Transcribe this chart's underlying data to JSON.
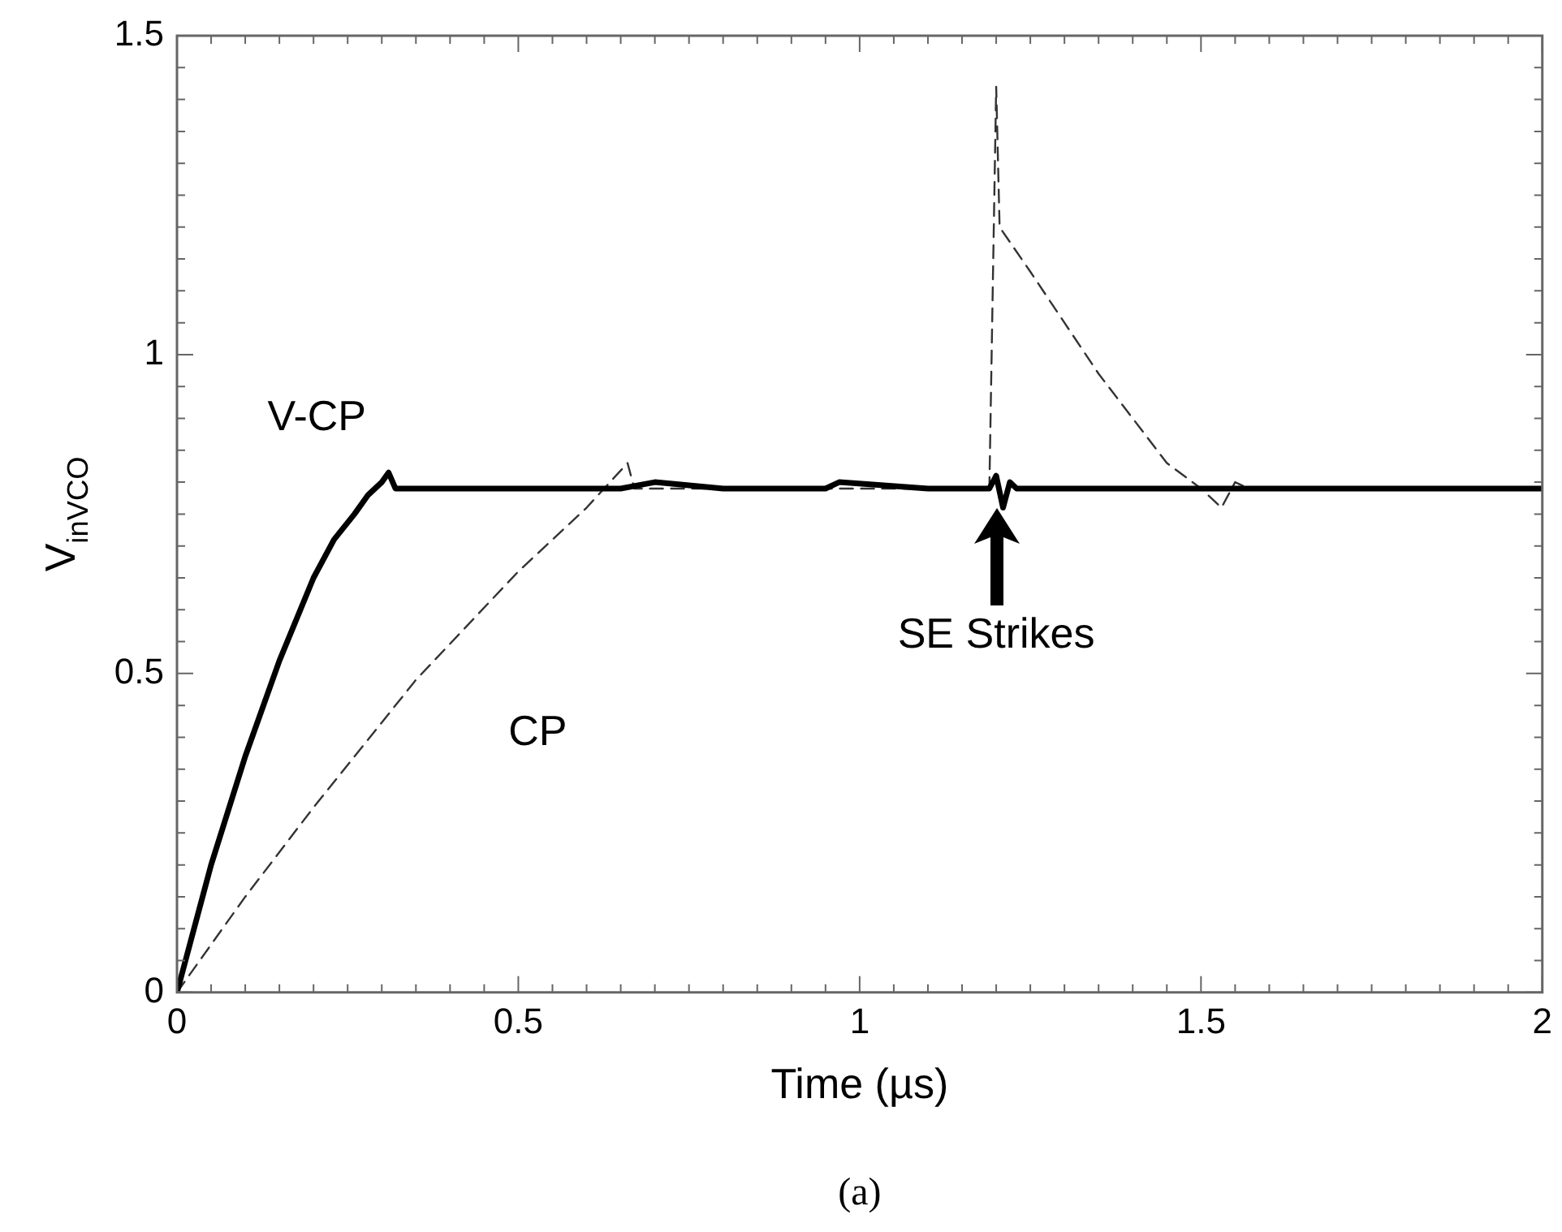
{
  "chart_data": {
    "type": "line",
    "xlabel": "Time (µs)",
    "ylabel": "V$_{inVCO}$",
    "xlim": [
      0,
      2
    ],
    "ylim": [
      0,
      1.5
    ],
    "xticks": [
      0,
      0.5,
      1,
      1.5,
      2
    ],
    "yticks": [
      0,
      0.5,
      1,
      1.5
    ],
    "grid": false,
    "legend": false,
    "marker": "none",
    "series": [
      {
        "name": "V-CP",
        "color": "#000000",
        "line_style": "solid",
        "x": [
          0,
          0.02,
          0.05,
          0.1,
          0.15,
          0.2,
          0.23,
          0.26,
          0.28,
          0.3,
          0.31,
          0.32,
          0.35,
          0.45,
          0.55,
          0.65,
          0.7,
          0.8,
          0.95,
          0.97,
          1.1,
          1.19,
          1.2,
          1.21,
          1.22,
          1.23,
          1.3,
          1.45,
          1.5,
          1.55,
          1.6,
          1.8,
          1.9,
          2
        ],
        "values": [
          0,
          0.08,
          0.2,
          0.37,
          0.52,
          0.65,
          0.71,
          0.75,
          0.78,
          0.8,
          0.815,
          0.79,
          0.79,
          0.79,
          0.79,
          0.79,
          0.8,
          0.79,
          0.79,
          0.8,
          0.79,
          0.79,
          0.81,
          0.76,
          0.8,
          0.79,
          0.79,
          0.79,
          0.79,
          0.79,
          0.79,
          0.79,
          0.79,
          0.79
        ]
      },
      {
        "name": "CP",
        "color": "#333333",
        "line_style": "dashed",
        "x": [
          0,
          0.1,
          0.2,
          0.35,
          0.5,
          0.55,
          0.6,
          0.66,
          0.67,
          0.7,
          1.0,
          1.19,
          1.2,
          1.205,
          1.25,
          1.3,
          1.35,
          1.4,
          1.45,
          1.5,
          1.53,
          1.55,
          1.57,
          1.6,
          2
        ],
        "values": [
          0,
          0.15,
          0.29,
          0.49,
          0.66,
          0.71,
          0.76,
          0.83,
          0.79,
          0.79,
          0.79,
          0.79,
          1.42,
          1.2,
          1.13,
          1.05,
          0.97,
          0.9,
          0.83,
          0.79,
          0.76,
          0.8,
          0.79,
          0.79,
          0.79
        ]
      }
    ],
    "annotations": [
      "SE Strikes",
      "(a)"
    ]
  }
}
